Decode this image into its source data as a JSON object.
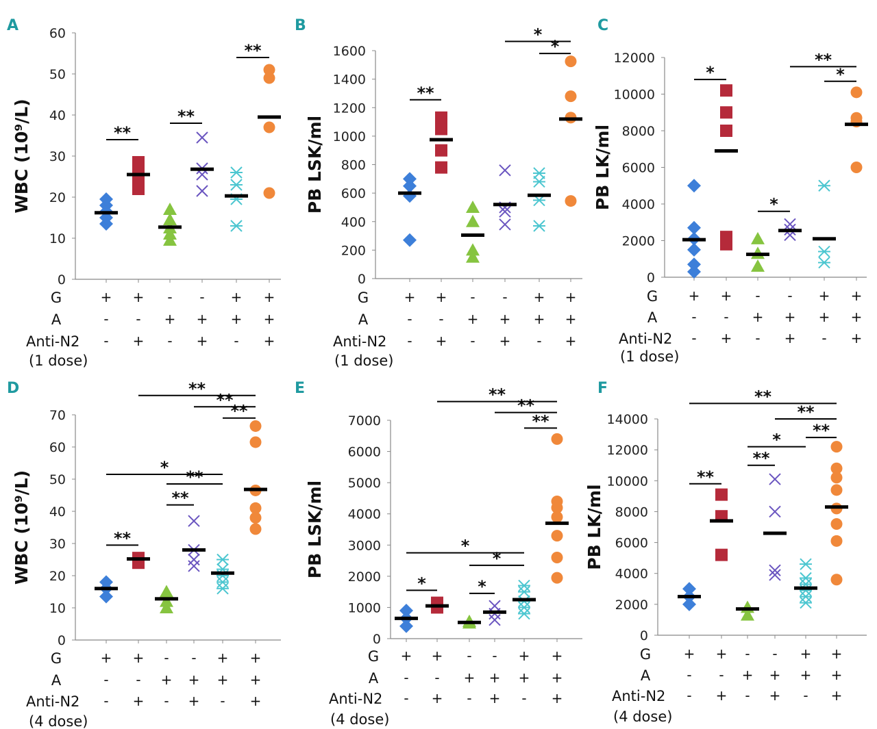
{
  "row_labels": {
    "g": "G",
    "a": "A",
    "anti": "Anti-N2",
    "dose_1": "(1 dose)",
    "dose_4": "(4 dose)"
  },
  "marker_colors": [
    "#3d7fd9",
    "#b52a3a",
    "#86c440",
    "#6a55c0",
    "#4cc6d0",
    "#f0883a"
  ],
  "marker_shapes": [
    "diamond",
    "square",
    "triangle",
    "x",
    "asterisk",
    "circle"
  ],
  "chart_data": [
    {
      "panel": "A",
      "type": "scatter",
      "ylabel": "WBC (10⁹/L)",
      "ylim": [
        0,
        60
      ],
      "yticks": [
        0,
        10,
        20,
        30,
        40,
        50,
        60
      ],
      "g_signs": [
        "+",
        "+",
        "-",
        "-",
        "+",
        "+"
      ],
      "a_signs": [
        "-",
        "-",
        "+",
        "+",
        "+",
        "+"
      ],
      "anti_signs": [
        "-",
        "+",
        "-",
        "+",
        "-",
        "+"
      ],
      "dose": "(1 dose)",
      "groups": [
        {
          "points": [
            13.5,
            15,
            16.5,
            18,
            19.5
          ],
          "mean": 16.2
        },
        {
          "points": [
            22,
            24,
            26,
            28.5
          ],
          "mean": 25.5
        },
        {
          "points": [
            9.5,
            11,
            12.5,
            14.5,
            17
          ],
          "mean": 12.7
        },
        {
          "points": [
            21.5,
            25.5,
            27,
            34.5
          ],
          "mean": 26.8
        },
        {
          "points": [
            13,
            19.5,
            23,
            26
          ],
          "mean": 20.3
        },
        {
          "points": [
            21,
            37,
            49,
            51
          ],
          "mean": 39.5
        }
      ],
      "sig": [
        {
          "from": 1,
          "to": 2,
          "label": "**",
          "y": 34
        },
        {
          "from": 3,
          "to": 4,
          "label": "**",
          "y": 38
        },
        {
          "from": 5,
          "to": 6,
          "label": "**",
          "y": 54
        }
      ]
    },
    {
      "panel": "B",
      "type": "scatter",
      "ylabel": "PB LSK/ml",
      "ylim": [
        0,
        1600
      ],
      "yticks": [
        0,
        200,
        400,
        600,
        800,
        1000,
        1200,
        1400,
        1600
      ],
      "g_signs": [
        "+",
        "+",
        "-",
        "-",
        "+",
        "+"
      ],
      "a_signs": [
        "-",
        "-",
        "+",
        "+",
        "+",
        "+"
      ],
      "anti_signs": [
        "-",
        "+",
        "-",
        "+",
        "-",
        "+"
      ],
      "dose": "(1 dose)",
      "groups": [
        {
          "points": [
            270,
            580,
            650,
            700
          ],
          "mean": 600
        },
        {
          "points": [
            780,
            900,
            1050,
            1130
          ],
          "mean": 975
        },
        {
          "points": [
            150,
            200,
            400,
            500
          ],
          "mean": 305
        },
        {
          "points": [
            380,
            470,
            500,
            760
          ],
          "mean": 520
        },
        {
          "points": [
            370,
            550,
            680,
            740
          ],
          "mean": 585
        },
        {
          "points": [
            545,
            1130,
            1280,
            1525
          ],
          "mean": 1120
        }
      ],
      "sig": [
        {
          "from": 1,
          "to": 2,
          "label": "**",
          "y": 1255
        },
        {
          "from": 5,
          "to": 6,
          "label": "*",
          "y": 1580
        },
        {
          "from": 4,
          "to": 6,
          "label": "*",
          "y": 1665
        }
      ]
    },
    {
      "panel": "C",
      "type": "scatter",
      "ylabel": "PB LK/ml",
      "ylim": [
        0,
        12000
      ],
      "yticks": [
        0,
        2000,
        4000,
        6000,
        8000,
        10000,
        12000
      ],
      "g_signs": [
        "+",
        "+",
        "-",
        "-",
        "+",
        "+"
      ],
      "a_signs": [
        "-",
        "-",
        "+",
        "+",
        "+",
        "+"
      ],
      "anti_signs": [
        "-",
        "+",
        "-",
        "+",
        "-",
        "+"
      ],
      "dose": "(1 dose)",
      "groups": [
        {
          "points": [
            300,
            700,
            1500,
            2100,
            2700,
            5000
          ],
          "mean": 2050
        },
        {
          "points": [
            1800,
            2200,
            8000,
            9000,
            10200
          ],
          "mean": 6900
        },
        {
          "points": [
            600,
            1300,
            2100
          ],
          "mean": 1250
        },
        {
          "points": [
            2300,
            2600,
            2900
          ],
          "mean": 2550
        },
        {
          "points": [
            800,
            1400,
            5000
          ],
          "mean": 2100
        },
        {
          "points": [
            6000,
            8500,
            8700,
            10100
          ],
          "mean": 8350
        }
      ],
      "sig": [
        {
          "from": 1,
          "to": 2,
          "label": "*",
          "y": 10800
        },
        {
          "from": 3,
          "to": 4,
          "label": "*",
          "y": 3600
        },
        {
          "from": 5,
          "to": 6,
          "label": "*",
          "y": 10700
        },
        {
          "from": 4,
          "to": 6,
          "label": "**",
          "y": 11500
        }
      ]
    },
    {
      "panel": "D",
      "type": "scatter",
      "ylabel": "WBC (10⁹/L)",
      "ylim": [
        0,
        70
      ],
      "yticks": [
        0,
        10,
        20,
        30,
        40,
        50,
        60,
        70
      ],
      "g_signs": [
        "+",
        "+",
        "-",
        "-",
        "+",
        "+"
      ],
      "a_signs": [
        "-",
        "-",
        "+",
        "+",
        "+",
        "+"
      ],
      "anti_signs": [
        "-",
        "+",
        "-",
        "+",
        "-",
        "+"
      ],
      "dose": "(4 dose)",
      "groups": [
        {
          "points": [
            13.5,
            16,
            18
          ],
          "mean": 16
        },
        {
          "points": [
            24,
            25.5
          ],
          "mean": 25.2
        },
        {
          "points": [
            10,
            12,
            15
          ],
          "mean": 12.8
        },
        {
          "points": [
            23,
            25,
            28,
            37
          ],
          "mean": 28
        },
        {
          "points": [
            16,
            18,
            20,
            22,
            25
          ],
          "mean": 20.8
        },
        {
          "points": [
            34.5,
            38,
            41,
            46.5,
            61.5,
            66.5
          ],
          "mean": 46.8
        }
      ],
      "sig": [
        {
          "from": 1,
          "to": 2,
          "label": "**",
          "y": 29.5
        },
        {
          "from": 3,
          "to": 4,
          "label": "**",
          "y": 42
        },
        {
          "from": 3,
          "to": 5,
          "label": "**",
          "y": 48.5
        },
        {
          "from": 1,
          "to": 5,
          "label": "*",
          "y": 51.5
        },
        {
          "from": 5,
          "to": 6,
          "label": "**",
          "y": 69
        },
        {
          "from": 4,
          "to": 6,
          "label": "**",
          "y": 72.5
        },
        {
          "from": 2,
          "to": 6,
          "label": "**",
          "y": 76
        }
      ]
    },
    {
      "panel": "E",
      "type": "scatter",
      "ylabel": "PB LSK/ml",
      "ylim": [
        0,
        7000
      ],
      "yticks": [
        0,
        1000,
        2000,
        3000,
        4000,
        5000,
        6000,
        7000
      ],
      "g_signs": [
        "+",
        "+",
        "-",
        "-",
        "+",
        "+"
      ],
      "a_signs": [
        "-",
        "-",
        "+",
        "+",
        "+",
        "+"
      ],
      "anti_signs": [
        "-",
        "+",
        "-",
        "+",
        "-",
        "+"
      ],
      "dose": "(4 dose)",
      "groups": [
        {
          "points": [
            400,
            650,
            900
          ],
          "mean": 650
        },
        {
          "points": [
            1000,
            1050,
            1150
          ],
          "mean": 1050
        },
        {
          "points": [
            500,
            550
          ],
          "mean": 520
        },
        {
          "points": [
            600,
            800,
            1050
          ],
          "mean": 850
        },
        {
          "points": [
            800,
            1000,
            1200,
            1500,
            1700
          ],
          "mean": 1250
        },
        {
          "points": [
            1950,
            2600,
            3300,
            3900,
            4200,
            4400,
            6400
          ],
          "mean": 3700
        }
      ],
      "sig": [
        {
          "from": 1,
          "to": 2,
          "label": "*",
          "y": 1550
        },
        {
          "from": 3,
          "to": 4,
          "label": "*",
          "y": 1450
        },
        {
          "from": 3,
          "to": 5,
          "label": "*",
          "y": 2350
        },
        {
          "from": 1,
          "to": 5,
          "label": "*",
          "y": 2750
        },
        {
          "from": 5,
          "to": 6,
          "label": "**",
          "y": 6750
        },
        {
          "from": 4,
          "to": 6,
          "label": "**",
          "y": 7250
        },
        {
          "from": 2,
          "to": 6,
          "label": "**",
          "y": 7600
        }
      ]
    },
    {
      "panel": "F",
      "type": "scatter",
      "ylabel": "PB LK/ml",
      "ylim": [
        0,
        14000
      ],
      "yticks": [
        0,
        2000,
        4000,
        6000,
        8000,
        10000,
        12000,
        14000
      ],
      "g_signs": [
        "+",
        "+",
        "-",
        "-",
        "+",
        "+"
      ],
      "a_signs": [
        "-",
        "-",
        "+",
        "+",
        "+",
        "+"
      ],
      "anti_signs": [
        "-",
        "+",
        "-",
        "+",
        "-",
        "+"
      ],
      "dose": "(4 dose)",
      "groups": [
        {
          "points": [
            2000,
            2500,
            3000
          ],
          "mean": 2500
        },
        {
          "points": [
            5200,
            7700,
            9100
          ],
          "mean": 7400
        },
        {
          "points": [
            1300,
            1800
          ],
          "mean": 1700
        },
        {
          "points": [
            3900,
            4200,
            8000,
            10100
          ],
          "mean": 6600
        },
        {
          "points": [
            2100,
            2500,
            2900,
            3300,
            3700,
            4600
          ],
          "mean": 3050
        },
        {
          "points": [
            3600,
            6100,
            7200,
            8200,
            9400,
            10200,
            10800,
            12200
          ],
          "mean": 8300
        }
      ],
      "sig": [
        {
          "from": 1,
          "to": 2,
          "label": "**",
          "y": 9800
        },
        {
          "from": 3,
          "to": 4,
          "label": "**",
          "y": 11000
        },
        {
          "from": 3,
          "to": 5,
          "label": "*",
          "y": 12200
        },
        {
          "from": 5,
          "to": 6,
          "label": "**",
          "y": 12800
        },
        {
          "from": 4,
          "to": 6,
          "label": "**",
          "y": 14000
        },
        {
          "from": 1,
          "to": 6,
          "label": "**",
          "y": 15000
        }
      ]
    }
  ]
}
